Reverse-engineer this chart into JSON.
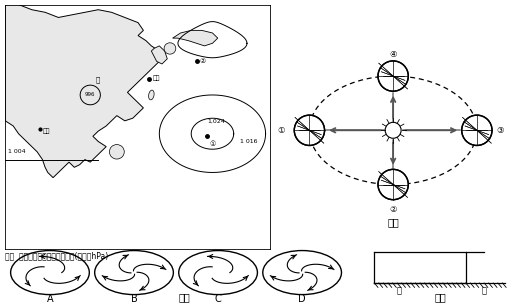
{
  "bg_color": "#ffffff",
  "title_map": "图甲  海平面及地面等压线分布图(单位：hPa)",
  "label_yi": "图乙",
  "label_bing": "图丙",
  "label_ding": "图丁",
  "orbit_a": 1.05,
  "orbit_b": 0.68,
  "earth_r": 0.19,
  "sun_r": 0.1
}
